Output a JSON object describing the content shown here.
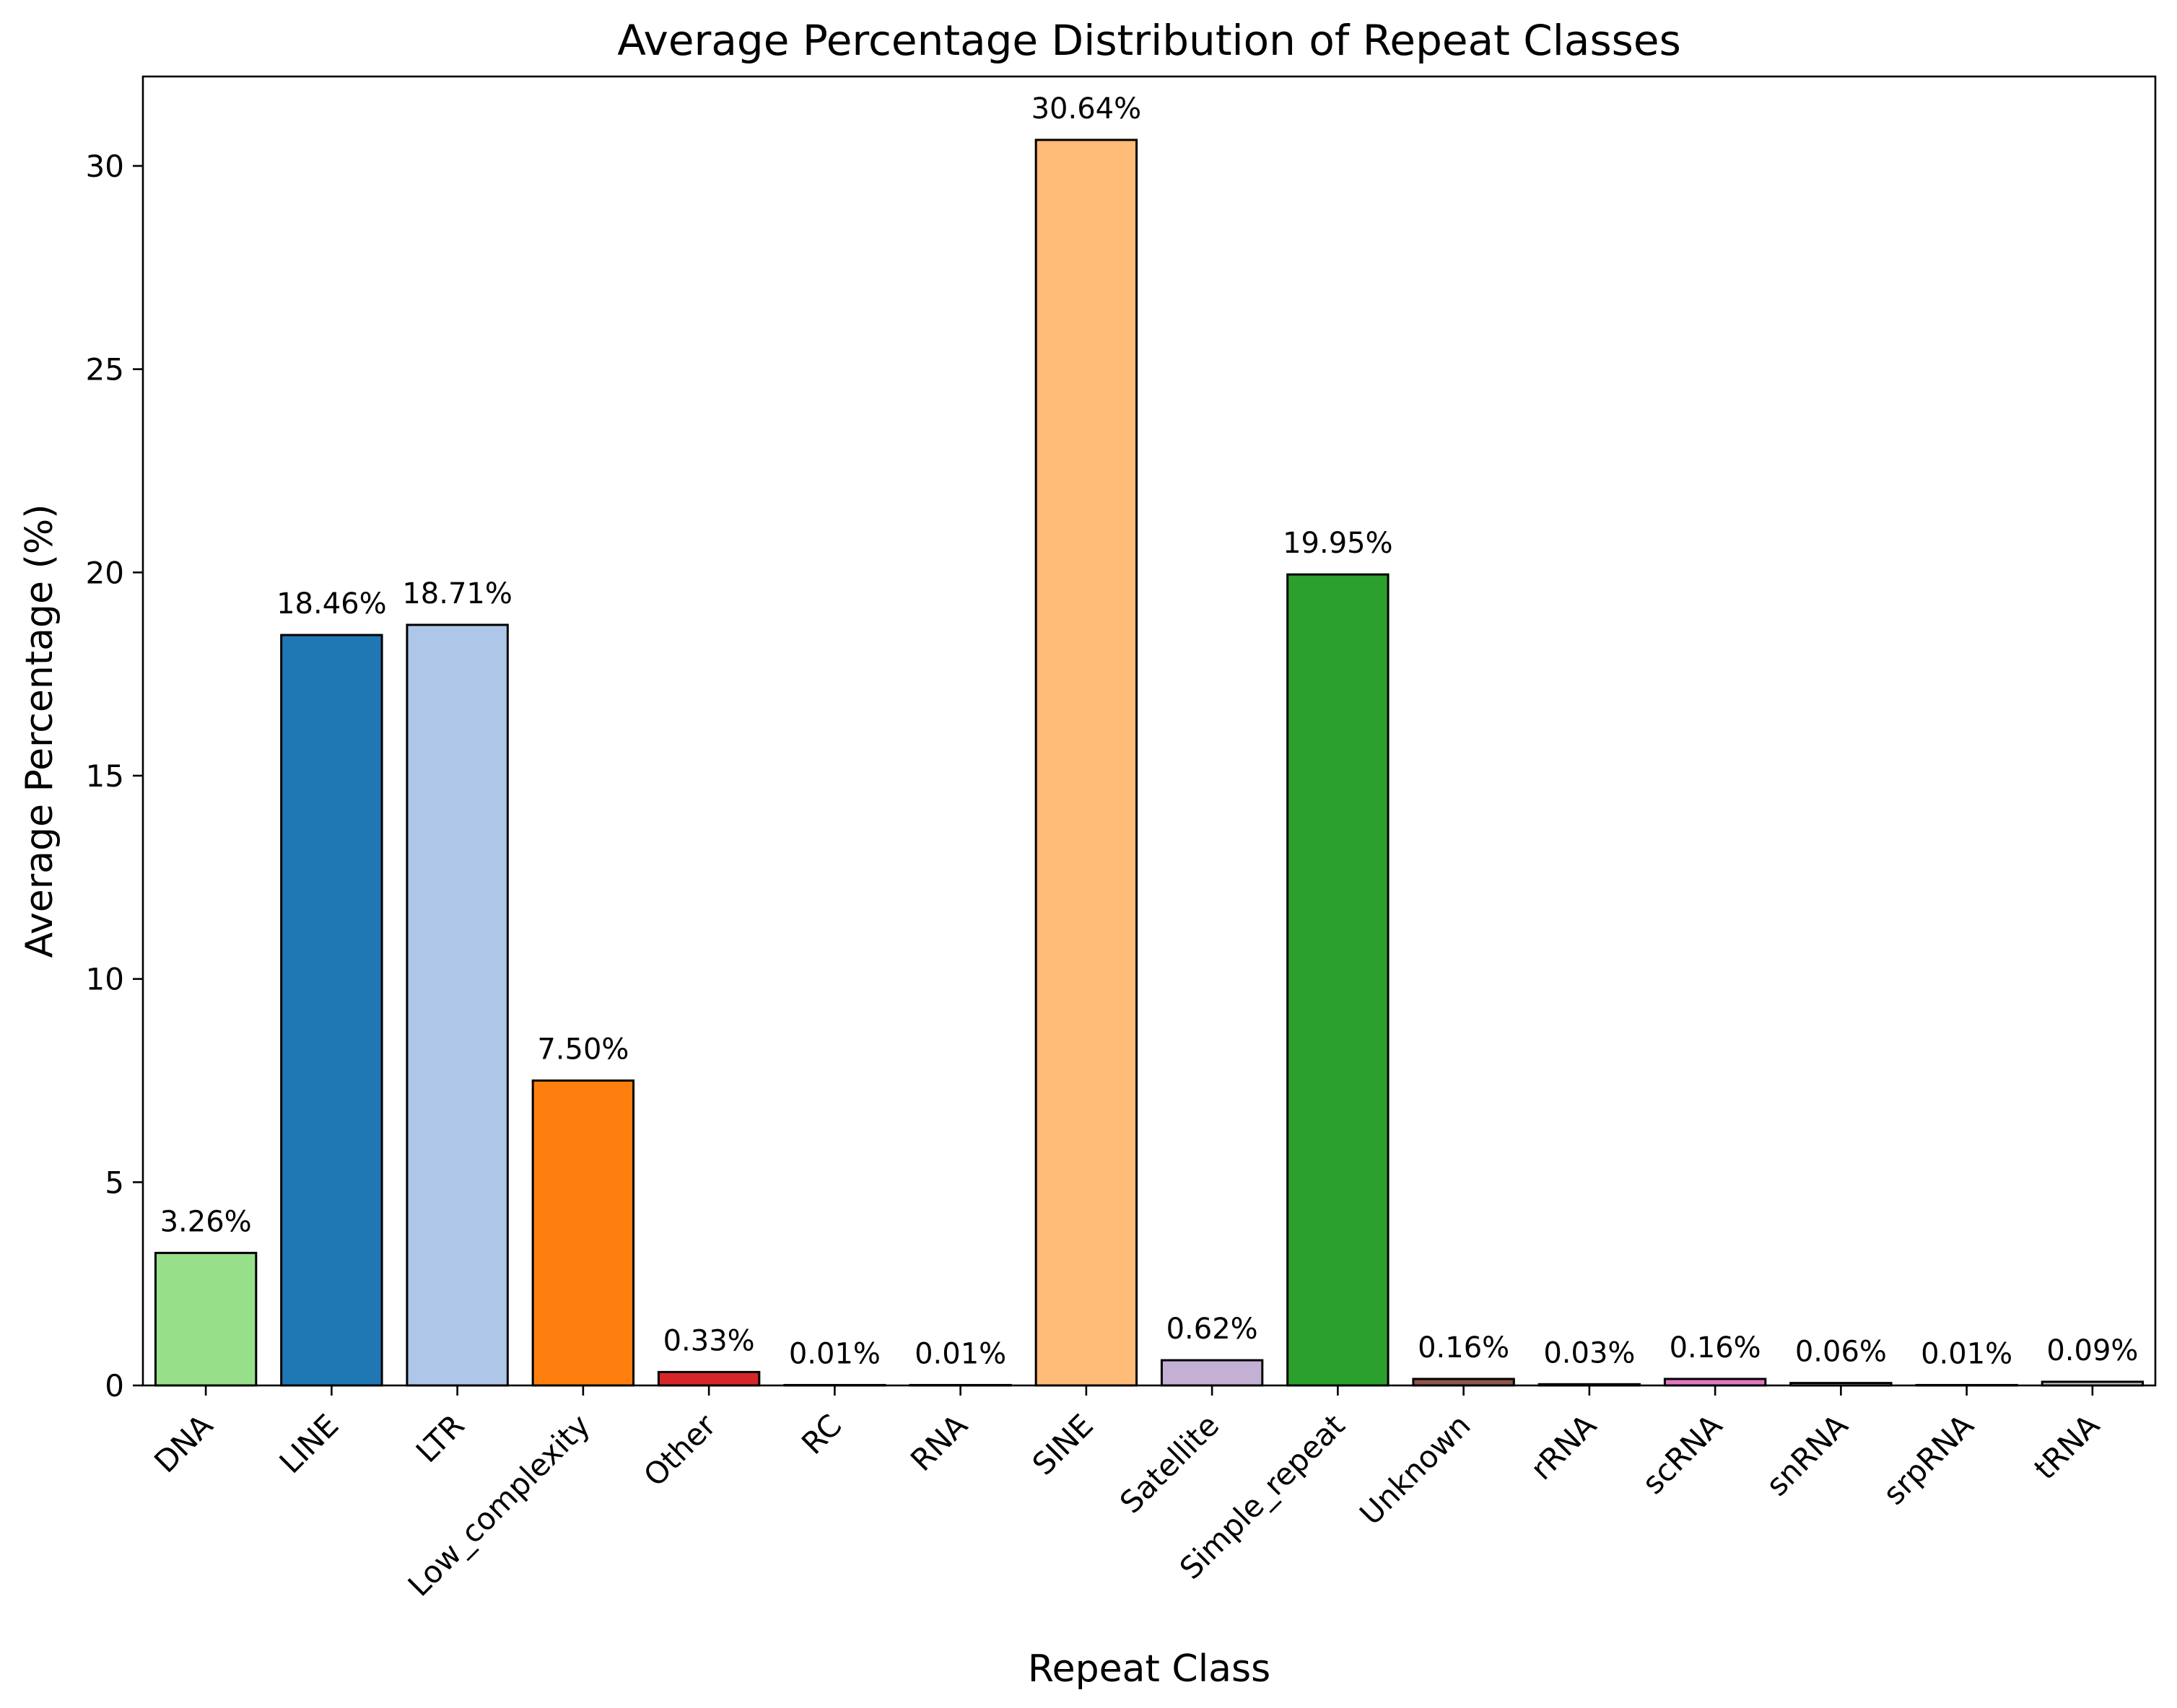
{
  "chart_data": {
    "type": "bar",
    "title": "Average Percentage Distribution of Repeat Classes",
    "xlabel": "Repeat Class",
    "ylabel": "Average Percentage (%)",
    "categories": [
      "DNA",
      "LINE",
      "LTR",
      "Low_complexity",
      "Other",
      "RC",
      "RNA",
      "SINE",
      "Satellite",
      "Simple_repeat",
      "Unknown",
      "rRNA",
      "scRNA",
      "snRNA",
      "srpRNA",
      "tRNA"
    ],
    "values": [
      3.26,
      18.46,
      18.71,
      7.5,
      0.33,
      0.01,
      0.01,
      30.64,
      0.62,
      19.95,
      0.16,
      0.03,
      0.16,
      0.06,
      0.01,
      0.09
    ],
    "value_labels": [
      "3.26%",
      "18.46%",
      "18.71%",
      "7.50%",
      "0.33%",
      "0.01%",
      "0.01%",
      "30.64%",
      "0.62%",
      "19.95%",
      "0.16%",
      "0.03%",
      "0.16%",
      "0.06%",
      "0.01%",
      "0.09%"
    ],
    "colors": [
      "#98df8a",
      "#1f77b4",
      "#aec7e8",
      "#ff7f0e",
      "#d62728",
      "#ff9896",
      "#9467bd",
      "#ffbb78",
      "#c5b0d5",
      "#2ca02c",
      "#8c564b",
      "#c49c94",
      "#e377c2",
      "#f7b6d2",
      "#7f7f7f",
      "#c7c7c7"
    ],
    "yticks": [
      0,
      5,
      10,
      15,
      20,
      25,
      30
    ],
    "ylim": [
      0,
      32.2
    ],
    "grid": false,
    "legend": "none"
  }
}
